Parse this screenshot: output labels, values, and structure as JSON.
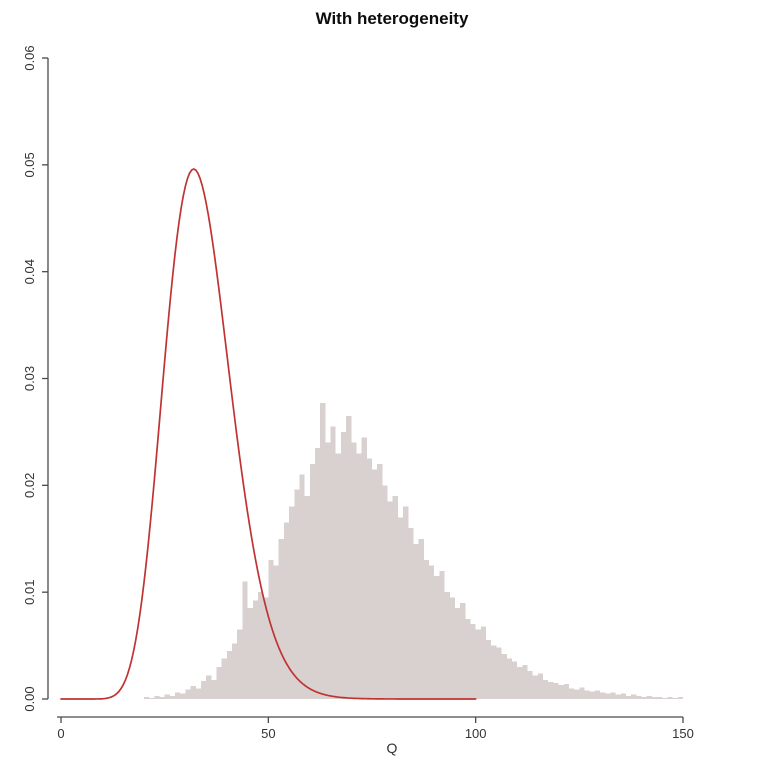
{
  "chart_data": {
    "type": "histogram+line",
    "title": "With heterogeneity",
    "xlabel": "Q",
    "ylabel": "",
    "xlim": [
      0,
      150
    ],
    "ylim": [
      0.0,
      0.06
    ],
    "grid": false,
    "legend": null,
    "x_tick_values": [
      0,
      50,
      100,
      150
    ],
    "x_tick_labels": [
      "0",
      "50",
      "100",
      "150"
    ],
    "y_tick_values": [
      0.0,
      0.01,
      0.02,
      0.03,
      0.04,
      0.05,
      0.06
    ],
    "y_tick_labels": [
      "0.00",
      "0.01",
      "0.02",
      "0.03",
      "0.04",
      "0.05",
      "0.06"
    ],
    "colors": {
      "histogram_fill": "#d8d1d0",
      "curve": "#c03333",
      "axis": "#4a4a4a",
      "text": "#333333",
      "background": "#ffffff"
    },
    "histogram": {
      "bin_start": 20,
      "bin_width": 1.25,
      "densities": [
        0.0002,
        0.0001,
        0.0003,
        0.0002,
        0.0004,
        0.0003,
        0.0006,
        0.0005,
        0.0009,
        0.0012,
        0.001,
        0.0017,
        0.0022,
        0.0018,
        0.003,
        0.0038,
        0.0045,
        0.0052,
        0.0065,
        0.011,
        0.0085,
        0.0092,
        0.01,
        0.0095,
        0.013,
        0.0125,
        0.015,
        0.0165,
        0.018,
        0.0196,
        0.021,
        0.019,
        0.022,
        0.0235,
        0.0277,
        0.024,
        0.0255,
        0.023,
        0.025,
        0.0265,
        0.024,
        0.023,
        0.0245,
        0.0225,
        0.0215,
        0.022,
        0.02,
        0.0185,
        0.019,
        0.017,
        0.018,
        0.016,
        0.0145,
        0.015,
        0.013,
        0.0125,
        0.0115,
        0.012,
        0.01,
        0.0095,
        0.0085,
        0.009,
        0.0075,
        0.007,
        0.0065,
        0.0068,
        0.0055,
        0.005,
        0.0048,
        0.0042,
        0.0038,
        0.0035,
        0.003,
        0.0032,
        0.0026,
        0.0022,
        0.0024,
        0.0018,
        0.0016,
        0.0015,
        0.0013,
        0.0014,
        0.001,
        0.0009,
        0.0011,
        0.0008,
        0.0007,
        0.0008,
        0.0006,
        0.0005,
        0.0006,
        0.0004,
        0.0005,
        0.0003,
        0.0004,
        0.0003,
        0.0002,
        0.0003,
        0.0002,
        0.0002,
        0.0001,
        0.0002,
        0.0001,
        0.0002
      ]
    },
    "curve": {
      "type": "chi-squared-density",
      "df": 34,
      "x_min": 0,
      "x_max": 100,
      "peak_x": 32,
      "peak_density": 0.0497
    }
  }
}
